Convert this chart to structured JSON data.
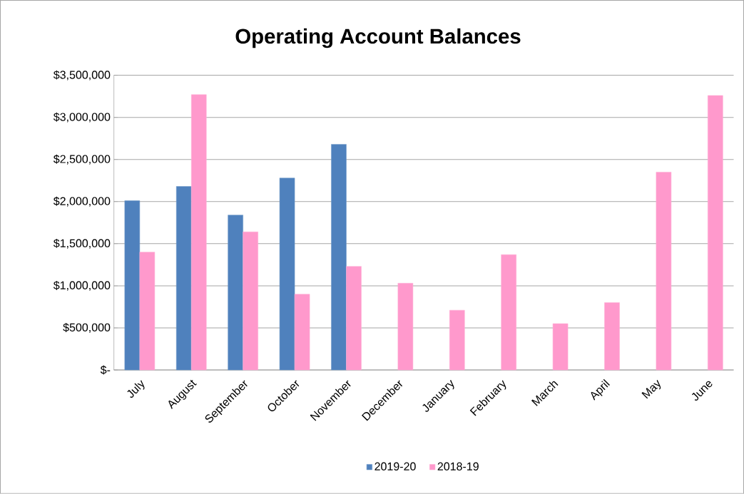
{
  "chart_data": {
    "type": "bar",
    "title": "Operating Account Balances",
    "categories": [
      "July",
      "August",
      "September",
      "October",
      "November",
      "December",
      "January",
      "February",
      "March",
      "April",
      "May",
      "June"
    ],
    "series": [
      {
        "name": "2019-20",
        "color": "#4f81bd",
        "values": [
          2010000,
          2180000,
          1840000,
          2280000,
          2680000,
          null,
          null,
          null,
          null,
          null,
          null,
          null
        ]
      },
      {
        "name": "2018-19",
        "color": "#ff99cc",
        "values": [
          1400000,
          3270000,
          1640000,
          900000,
          1230000,
          1030000,
          710000,
          1370000,
          550000,
          800000,
          2350000,
          3260000
        ]
      }
    ],
    "ylim": [
      0,
      3500000
    ],
    "yticks": [
      {
        "value": 0,
        "label": "$-"
      },
      {
        "value": 500000,
        "label": "$500,000"
      },
      {
        "value": 1000000,
        "label": "$1,000,000"
      },
      {
        "value": 1500000,
        "label": "$1,500,000"
      },
      {
        "value": 2000000,
        "label": "$2,000,000"
      },
      {
        "value": 2500000,
        "label": "$2,500,000"
      },
      {
        "value": 3000000,
        "label": "$3,000,000"
      },
      {
        "value": 3500000,
        "label": "$3,500,000"
      }
    ],
    "grid": "y",
    "legend": "bottom"
  }
}
